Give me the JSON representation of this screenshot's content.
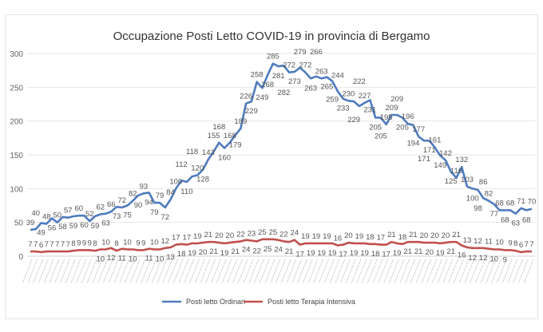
{
  "chart_data": {
    "type": "line",
    "title": "Occupazione Posti Letto COVID-19 in provincia di Bergamo",
    "xlabel": "",
    "ylabel": "",
    "ylim": [
      0,
      300
    ],
    "yticks": [
      0,
      50,
      100,
      150,
      200,
      250,
      300
    ],
    "grid": true,
    "legend": "bottom",
    "series": [
      {
        "name": "Posti letto Ordinari",
        "color": "#4F7BBE",
        "values": [
          39,
          40,
          49,
          48,
          56,
          50,
          58,
          57,
          59,
          60,
          60,
          52,
          59,
          62,
          63,
          66,
          73,
          72,
          75,
          82,
          90,
          93,
          94,
          79,
          79,
          72,
          84,
          100,
          112,
          110,
          118,
          120,
          128,
          143,
          155,
          168,
          160,
          168,
          179,
          189,
          226,
          229,
          258,
          249,
          268,
          285,
          281,
          282,
          272,
          273,
          279,
          272,
          263,
          266,
          263,
          265,
          259,
          244,
          233,
          230,
          229,
          222,
          227,
          231,
          205,
          205,
          195,
          209,
          209,
          205,
          196,
          194,
          177,
          171,
          171,
          161,
          149,
          142,
          125,
          116,
          132,
          103,
          100,
          98,
          86,
          82,
          77,
          68,
          68,
          68,
          63,
          71,
          68,
          70
        ]
      },
      {
        "name": "Posti letto Terapia Intensiva",
        "color": "#C0504D",
        "values": [
          7,
          7,
          6,
          7,
          7,
          7,
          7,
          7,
          8,
          9,
          9,
          9,
          8,
          10,
          10,
          12,
          8,
          11,
          10,
          10,
          9,
          9,
          11,
          10,
          10,
          12,
          13,
          17,
          18,
          17,
          19,
          19,
          20,
          21,
          21,
          20,
          19,
          20,
          21,
          22,
          24,
          23,
          22,
          25,
          25,
          25,
          24,
          22,
          21,
          24,
          17,
          19,
          19,
          19,
          19,
          19,
          19,
          16,
          17,
          20,
          19,
          19,
          19,
          18,
          18,
          17,
          17,
          21,
          19,
          18,
          21,
          21,
          21,
          20,
          20,
          20,
          19,
          20,
          21,
          21,
          16,
          13,
          12,
          12,
          12,
          11,
          10,
          10,
          9,
          9,
          8,
          6,
          7,
          7
        ]
      }
    ]
  }
}
